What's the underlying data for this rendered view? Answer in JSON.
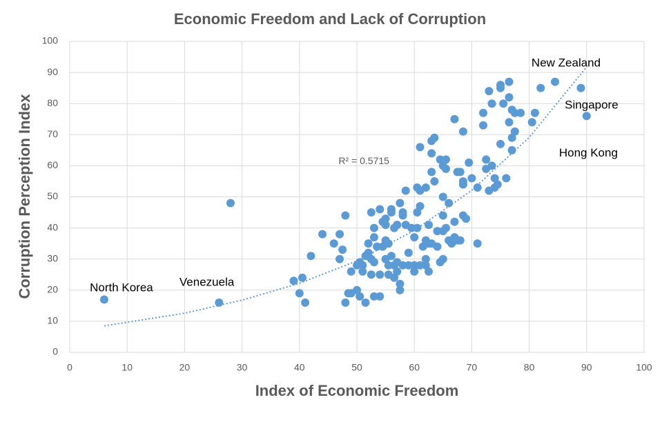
{
  "chart_data": {
    "type": "scatter",
    "title": "Economic Freedom and Lack of Corruption",
    "x_label": "Index of Economic Freedom",
    "y_label": "Corruption Perception Index",
    "color": "#5b9bd5",
    "xlim": [
      0,
      100
    ],
    "xticks": [
      0,
      10,
      20,
      30,
      40,
      50,
      60,
      70,
      80,
      90,
      100
    ],
    "ylim": [
      0,
      100
    ],
    "yticks": [
      0,
      10,
      20,
      30,
      40,
      50,
      60,
      70,
      80,
      90,
      100
    ],
    "grid": true,
    "x": [
      6,
      26,
      28,
      39,
      40,
      40.5,
      41,
      42,
      44,
      46,
      47,
      47,
      47.5,
      48,
      48,
      48.5,
      49,
      49,
      50,
      50,
      50.5,
      50.5,
      51,
      51,
      51.5,
      51.5,
      52,
      52,
      52.5,
      52.5,
      52.5,
      53,
      53,
      53,
      53,
      53.5,
      54,
      54,
      54,
      54.5,
      54.5,
      55,
      55,
      55,
      55,
      55.5,
      55.5,
      55.5,
      56,
      56,
      56,
      56.5,
      56.5,
      56.5,
      57,
      57,
      57,
      57.5,
      57.5,
      57.5,
      58,
      58,
      58,
      58.5,
      58.5,
      59,
      59,
      59.5,
      60,
      60,
      60,
      60.5,
      60.5,
      60.5,
      61,
      61,
      61,
      61,
      61.5,
      62,
      62,
      62,
      62,
      62.5,
      62.5,
      62.5,
      63,
      63,
      63,
      63,
      63.5,
      63.5,
      64,
      64,
      64.5,
      64.5,
      65,
      65,
      65,
      65,
      65,
      65.5,
      65.5,
      65.5,
      66,
      66,
      66.5,
      67,
      67,
      67,
      67.5,
      67.5,
      68,
      68,
      68.5,
      68.5,
      68.5,
      68.5,
      69,
      69.5,
      70,
      71,
      71,
      72,
      72,
      72.5,
      72.5,
      73,
      73,
      73.5,
      73.5,
      74,
      74,
      74.5,
      75,
      75,
      75,
      75.5,
      76,
      76.5,
      76.5,
      76.5,
      77,
      77,
      77,
      77.5,
      77.5,
      78.5,
      80.5,
      81,
      82,
      84.5,
      89,
      90
    ],
    "values": [
      17,
      16,
      48,
      23,
      19,
      24,
      16,
      31,
      38,
      35,
      38,
      30,
      33,
      44,
      16,
      19,
      26,
      19,
      28,
      20,
      29,
      18,
      26,
      28,
      31,
      16,
      35,
      32,
      45,
      25,
      30,
      18,
      37,
      40,
      29,
      34,
      46,
      25,
      18,
      42,
      34,
      41,
      36,
      30,
      43,
      25,
      28,
      35,
      46,
      45,
      31,
      40,
      24,
      28,
      26,
      41,
      29,
      48,
      22,
      20,
      45,
      44,
      28,
      52,
      41,
      28,
      32,
      40,
      28,
      26,
      37,
      45,
      53,
      40,
      52,
      66,
      47,
      28,
      34,
      53,
      36,
      28,
      30,
      26,
      41,
      35,
      64,
      68,
      58,
      35,
      55,
      69,
      34,
      39,
      62,
      29,
      60,
      50,
      44,
      39,
      30,
      62,
      59,
      40,
      36,
      48,
      35,
      75,
      37,
      42,
      58,
      36,
      36,
      58,
      71,
      55,
      54,
      44,
      43,
      61,
      56,
      53,
      35,
      77,
      73,
      59,
      62,
      84,
      52,
      80,
      60,
      56,
      53,
      54,
      86,
      85,
      67,
      80,
      56,
      87,
      82,
      74,
      78,
      69,
      65,
      77,
      71,
      77,
      74,
      77,
      85,
      87,
      85,
      76
    ],
    "trendline": {
      "type": "exponential",
      "label": "R² = 0.5715",
      "x": [
        6,
        20,
        30,
        40,
        50,
        60,
        70,
        80,
        90
      ],
      "values": [
        8.5,
        12.6,
        16.8,
        22.2,
        29.4,
        39.2,
        52.1,
        69.1,
        91.8
      ],
      "label_x": 46.8,
      "label_y": 61.4
    },
    "annotations": [
      {
        "text": "North Korea",
        "x": 3.5,
        "y": 20.6
      },
      {
        "text": "Venezuela",
        "x": 19.1,
        "y": 22.4
      },
      {
        "text": "New Zealand",
        "x": 80.4,
        "y": 92.9
      },
      {
        "text": "Singapore",
        "x": 86.2,
        "y": 79.4
      },
      {
        "text": "Hong Kong",
        "x": 85.2,
        "y": 64
      }
    ]
  }
}
